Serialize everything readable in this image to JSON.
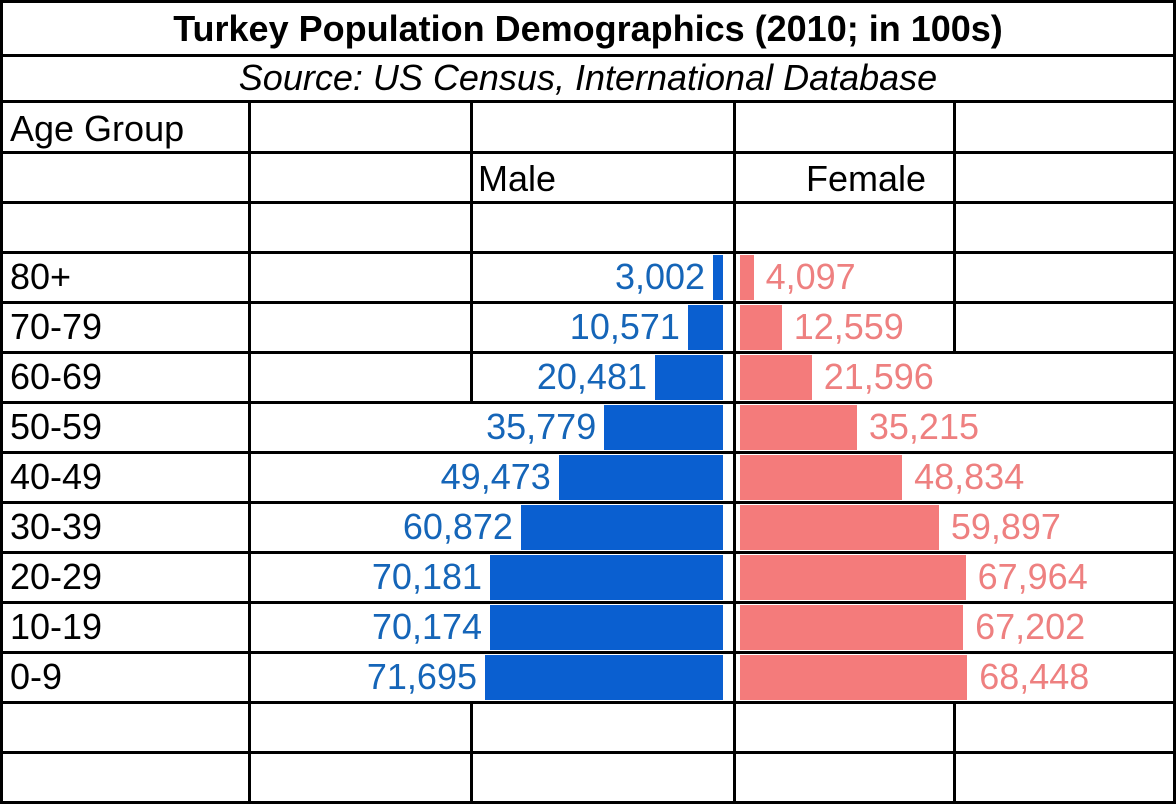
{
  "title": "Turkey Population Demographics (2010; in 100s)",
  "subtitle": "Source: US Census, International Database",
  "header": {
    "age_group": "Age Group",
    "male": "Male",
    "female": "Female"
  },
  "colors": {
    "male_bar": "#0a5fd0",
    "male_label": "#1565b8",
    "female_bar": "#f47b7b",
    "female_label": "#ee8080",
    "grid": "#000000"
  },
  "chart_data": {
    "type": "bar",
    "orientation": "horizontal",
    "categories": [
      "80+",
      "70-79",
      "60-69",
      "50-59",
      "40-49",
      "30-39",
      "20-29",
      "10-19",
      "0-9"
    ],
    "category_label": "Age Group",
    "series": [
      {
        "name": "Male",
        "values": [
          3002,
          10571,
          20481,
          35779,
          49473,
          60872,
          70181,
          70174,
          71695
        ],
        "labels": [
          "3,002",
          "10,571",
          "20,481",
          "35,779",
          "49,473",
          "60,872",
          "70,181",
          "70,174",
          "71,695"
        ]
      },
      {
        "name": "Female",
        "values": [
          4097,
          12559,
          21596,
          35215,
          48834,
          59897,
          67964,
          67202,
          68448
        ],
        "labels": [
          "4,097",
          "12,559",
          "21,596",
          "35,215",
          "48,834",
          "59,897",
          "67,964",
          "67,202",
          "68,448"
        ]
      }
    ],
    "title": "Turkey Population Demographics (2010; in 100s)",
    "subtitle": "Source: US Census, International Database",
    "grid": true
  }
}
